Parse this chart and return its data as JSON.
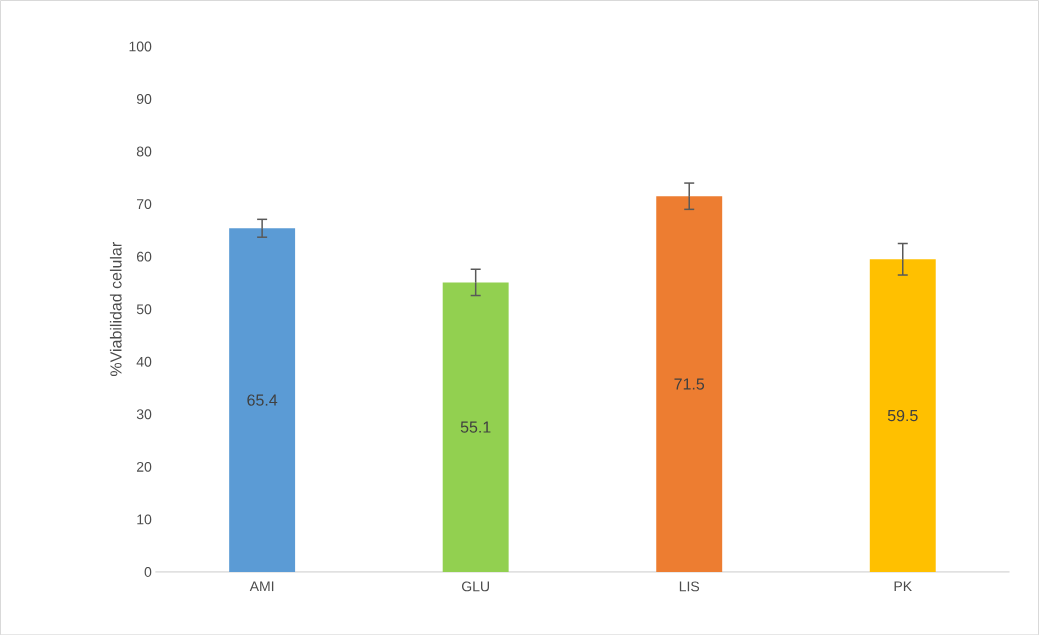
{
  "chart_data": {
    "type": "bar",
    "ylabel": "%Viabilidad celular",
    "categories": [
      "AMI",
      "GLU",
      "LIS",
      "PK"
    ],
    "values": [
      65.4,
      55.1,
      71.5,
      59.5
    ],
    "colors": [
      "#5b9bd5",
      "#92d050",
      "#ed7d31",
      "#ffc000"
    ],
    "errors": [
      1.7,
      2.5,
      2.5,
      3.0
    ],
    "data_labels": true,
    "ylim": [
      0,
      100
    ],
    "yticks": [
      0,
      10,
      20,
      30,
      40,
      50,
      60,
      70,
      80,
      90,
      100
    ],
    "grid": false
  }
}
